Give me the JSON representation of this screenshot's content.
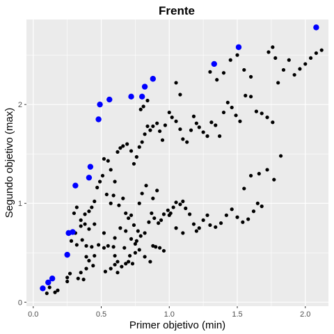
{
  "chart_data": {
    "type": "scatter",
    "title": "Frente",
    "xlabel": "Primer objetivo (min)",
    "ylabel": "Segundo objetivo (max)",
    "xlim": [
      -0.05,
      2.17
    ],
    "ylim": [
      -0.04,
      2.86
    ],
    "x_ticks": [
      0.0,
      0.5,
      1.0,
      1.5,
      2.0
    ],
    "x_tick_labels": [
      "0.0",
      "0.5",
      "1.0",
      "1.5",
      "2.0"
    ],
    "y_ticks": [
      0,
      1,
      2
    ],
    "y_tick_labels": [
      "0",
      "1",
      "2"
    ],
    "grid": true,
    "panel_background": "#EBEBEB",
    "series": [
      {
        "color": "#000000",
        "points": [
          [
            0.1,
            0.09
          ],
          [
            0.12,
            0.15
          ],
          [
            0.18,
            0.12
          ],
          [
            0.16,
            0.1
          ],
          [
            0.25,
            0.21
          ],
          [
            0.27,
            0.29
          ],
          [
            0.33,
            0.24
          ],
          [
            0.35,
            0.3
          ],
          [
            0.37,
            0.23
          ],
          [
            0.39,
            0.34
          ],
          [
            0.41,
            0.42
          ],
          [
            0.39,
            0.46
          ],
          [
            0.44,
            0.37
          ],
          [
            0.45,
            0.47
          ],
          [
            0.43,
            0.56
          ],
          [
            0.48,
            0.58
          ],
          [
            0.39,
            0.57
          ],
          [
            0.36,
            0.63
          ],
          [
            0.32,
            0.58
          ],
          [
            0.31,
            0.7
          ],
          [
            0.35,
            0.77
          ],
          [
            0.38,
            0.79
          ],
          [
            0.41,
            0.74
          ],
          [
            0.45,
            0.79
          ],
          [
            0.52,
            0.7
          ],
          [
            0.55,
            0.57
          ],
          [
            0.59,
            0.56
          ],
          [
            0.6,
            0.47
          ],
          [
            0.62,
            0.41
          ],
          [
            0.65,
            0.36
          ],
          [
            0.68,
            0.39
          ],
          [
            0.7,
            0.41
          ],
          [
            0.73,
            0.39
          ],
          [
            0.71,
            0.47
          ],
          [
            0.67,
            0.55
          ],
          [
            0.72,
            0.64
          ],
          [
            0.75,
            0.59
          ],
          [
            0.78,
            0.53
          ],
          [
            0.82,
            0.46
          ],
          [
            0.86,
            0.41
          ],
          [
            0.88,
            0.57
          ],
          [
            0.9,
            0.56
          ],
          [
            0.93,
            0.55
          ],
          [
            0.96,
            0.52
          ],
          [
            0.53,
            0.31
          ],
          [
            0.57,
            0.34
          ],
          [
            0.6,
            0.38
          ],
          [
            0.62,
            0.3
          ],
          [
            0.3,
            0.9
          ],
          [
            0.32,
            0.96
          ],
          [
            0.35,
            0.83
          ],
          [
            0.38,
            0.89
          ],
          [
            0.41,
            0.92
          ],
          [
            0.43,
            0.96
          ],
          [
            0.45,
            1.02
          ],
          [
            0.47,
            1.16
          ],
          [
            0.49,
            1.22
          ],
          [
            0.51,
            1.28
          ],
          [
            0.54,
            1.09
          ],
          [
            0.57,
            1.0
          ],
          [
            0.59,
            1.08
          ],
          [
            0.63,
            0.98
          ],
          [
            0.66,
            1.05
          ],
          [
            0.68,
            0.9
          ],
          [
            0.7,
            0.85
          ],
          [
            0.72,
            0.88
          ],
          [
            0.74,
            0.78
          ],
          [
            0.77,
            0.72
          ],
          [
            0.79,
            0.67
          ],
          [
            0.82,
            0.7
          ],
          [
            0.85,
            0.81
          ],
          [
            0.87,
            0.9
          ],
          [
            0.89,
            0.85
          ],
          [
            0.92,
            0.8
          ],
          [
            0.94,
            0.83
          ],
          [
            0.96,
            0.89
          ],
          [
            0.99,
            0.93
          ],
          [
            1.01,
            0.9
          ],
          [
            1.03,
            0.96
          ],
          [
            1.05,
            1.01
          ],
          [
            1.08,
            0.99
          ],
          [
            1.1,
            1.02
          ],
          [
            1.12,
            0.95
          ],
          [
            1.15,
            0.89
          ],
          [
            1.18,
            0.79
          ],
          [
            1.2,
            0.72
          ],
          [
            1.22,
            0.75
          ],
          [
            1.25,
            0.83
          ],
          [
            1.28,
            0.88
          ],
          [
            1.3,
            0.78
          ],
          [
            1.34,
            0.76
          ],
          [
            1.38,
            0.8
          ],
          [
            1.42,
            0.88
          ],
          [
            1.46,
            0.94
          ],
          [
            1.5,
            0.86
          ],
          [
            1.54,
            0.81
          ],
          [
            1.58,
            0.84
          ],
          [
            1.62,
            0.92
          ],
          [
            1.65,
            1.0
          ],
          [
            1.68,
            0.97
          ],
          [
            1.55,
            1.15
          ],
          [
            1.6,
            1.28
          ],
          [
            1.66,
            1.3
          ],
          [
            1.72,
            1.34
          ],
          [
            1.77,
            1.24
          ],
          [
            1.82,
            1.48
          ],
          [
            0.52,
            1.45
          ],
          [
            0.55,
            1.43
          ],
          [
            0.57,
            1.34
          ],
          [
            0.6,
            1.22
          ],
          [
            0.62,
            1.52
          ],
          [
            0.64,
            1.56
          ],
          [
            0.66,
            1.58
          ],
          [
            0.69,
            1.6
          ],
          [
            0.72,
            1.53
          ],
          [
            0.74,
            1.4
          ],
          [
            0.76,
            1.47
          ],
          [
            0.78,
            1.57
          ],
          [
            0.8,
            1.62
          ],
          [
            0.82,
            1.7
          ],
          [
            0.84,
            1.78
          ],
          [
            0.86,
            1.74
          ],
          [
            0.88,
            1.78
          ],
          [
            0.91,
            1.81
          ],
          [
            0.93,
            1.73
          ],
          [
            0.95,
            1.64
          ],
          [
            0.97,
            1.79
          ],
          [
            1.0,
            1.92
          ],
          [
            1.02,
            1.87
          ],
          [
            1.05,
            1.83
          ],
          [
            1.08,
            1.75
          ],
          [
            1.1,
            1.65
          ],
          [
            1.13,
            1.62
          ],
          [
            1.16,
            1.74
          ],
          [
            1.18,
            1.88
          ],
          [
            1.2,
            1.81
          ],
          [
            1.22,
            1.77
          ],
          [
            1.25,
            1.72
          ],
          [
            1.28,
            1.68
          ],
          [
            1.31,
            1.82
          ],
          [
            1.34,
            1.79
          ],
          [
            1.37,
            1.68
          ],
          [
            1.4,
            1.92
          ],
          [
            1.43,
            2.02
          ],
          [
            1.46,
            1.97
          ],
          [
            1.49,
            1.89
          ],
          [
            1.52,
            1.83
          ],
          [
            1.56,
            2.09
          ],
          [
            1.6,
            2.08
          ],
          [
            1.64,
            1.93
          ],
          [
            1.68,
            1.91
          ],
          [
            1.72,
            1.87
          ],
          [
            1.76,
            1.82
          ],
          [
            1.8,
            2.22
          ],
          [
            1.84,
            2.35
          ],
          [
            1.88,
            2.45
          ],
          [
            1.92,
            2.3
          ],
          [
            1.96,
            2.36
          ],
          [
            2.0,
            2.41
          ],
          [
            2.04,
            2.47
          ],
          [
            2.08,
            2.52
          ],
          [
            2.12,
            2.55
          ],
          [
            0.79,
            1.95
          ],
          [
            0.81,
            1.98
          ],
          [
            0.84,
            2.04
          ],
          [
            1.05,
            2.22
          ],
          [
            1.08,
            2.1
          ],
          [
            1.3,
            2.33
          ],
          [
            1.35,
            2.25
          ],
          [
            1.4,
            2.32
          ],
          [
            1.45,
            2.45
          ],
          [
            1.5,
            2.5
          ],
          [
            1.55,
            2.35
          ],
          [
            1.6,
            2.28
          ],
          [
            1.73,
            2.53
          ],
          [
            1.76,
            2.58
          ],
          [
            1.78,
            2.47
          ],
          [
            0.25,
            0.25
          ],
          [
            0.28,
            0.62
          ],
          [
            0.52,
            0.55
          ],
          [
            0.6,
            0.65
          ],
          [
            0.64,
            0.75
          ],
          [
            0.68,
            0.72
          ],
          [
            0.75,
            0.5
          ],
          [
            0.76,
            0.62
          ],
          [
            0.78,
            1.0
          ],
          [
            0.8,
            1.1
          ],
          [
            0.83,
            1.18
          ],
          [
            0.88,
            1.05
          ],
          [
            0.91,
            1.13
          ],
          [
            1.0,
            0.88
          ],
          [
            1.05,
            0.75
          ],
          [
            1.1,
            0.7
          ]
        ]
      },
      {
        "color": "#0000FF",
        "points": [
          [
            0.07,
            0.14
          ],
          [
            0.11,
            0.2
          ],
          [
            0.14,
            0.24
          ],
          [
            0.25,
            0.48
          ],
          [
            0.26,
            0.7
          ],
          [
            0.29,
            0.71
          ],
          [
            0.31,
            1.18
          ],
          [
            0.41,
            1.26
          ],
          [
            0.42,
            1.37
          ],
          [
            0.48,
            1.85
          ],
          [
            0.49,
            2.0
          ],
          [
            0.56,
            2.05
          ],
          [
            0.72,
            2.08
          ],
          [
            0.8,
            2.08
          ],
          [
            0.82,
            2.18
          ],
          [
            0.88,
            2.26
          ],
          [
            1.33,
            2.41
          ],
          [
            1.51,
            2.58
          ],
          [
            2.08,
            2.78
          ]
        ]
      }
    ]
  }
}
